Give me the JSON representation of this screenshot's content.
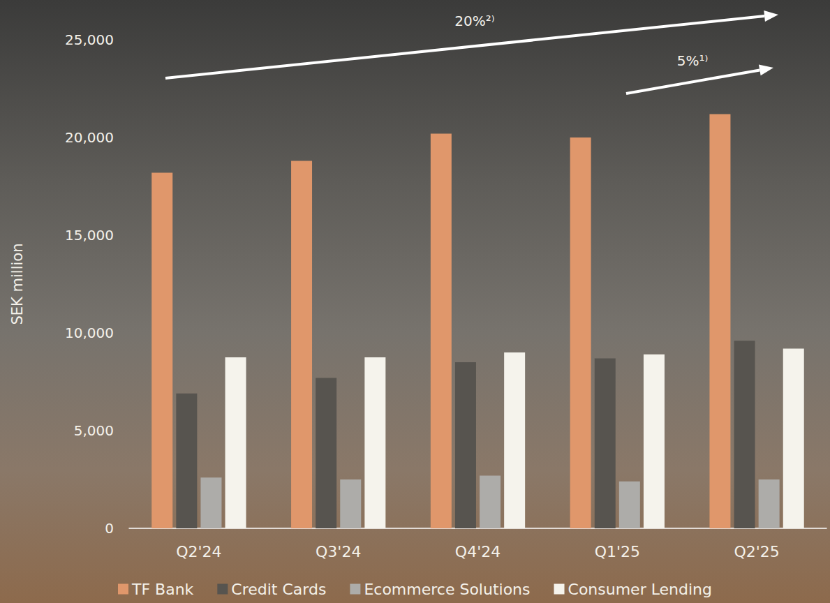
{
  "chart_data": {
    "type": "bar",
    "categories": [
      "Q2'24",
      "Q3'24",
      "Q4'24",
      "Q1'25",
      "Q2'25"
    ],
    "series": [
      {
        "name": "TF Bank",
        "color": "#E0976B",
        "values": [
          18200,
          18800,
          20200,
          20000,
          21200
        ]
      },
      {
        "name": "Credit Cards",
        "color": "#57544F",
        "values": [
          6900,
          7700,
          8500,
          8700,
          9600
        ]
      },
      {
        "name": "Ecommerce Solutions",
        "color": "#ADACA9",
        "values": [
          2600,
          2500,
          2700,
          2400,
          2500
        ]
      },
      {
        "name": "Consumer Lending",
        "color": "#F5F3EC",
        "values": [
          8750,
          8750,
          9000,
          8900,
          9200
        ]
      }
    ],
    "y_label": "SEK million",
    "ylim": [
      0,
      25000
    ],
    "yticks": [
      0,
      {
        "value": 5000,
        "label": "5,000"
      },
      {
        "value": 10000,
        "label": "10,000"
      },
      {
        "value": 15000,
        "label": "15,000"
      },
      {
        "value": 20000,
        "label": "20,000"
      },
      {
        "value": 25000,
        "label": "25,000"
      }
    ],
    "grid": false,
    "legend": "bottom",
    "annotations": [
      {
        "text": "20%²⁾"
      },
      {
        "text": "5%¹⁾"
      }
    ]
  }
}
